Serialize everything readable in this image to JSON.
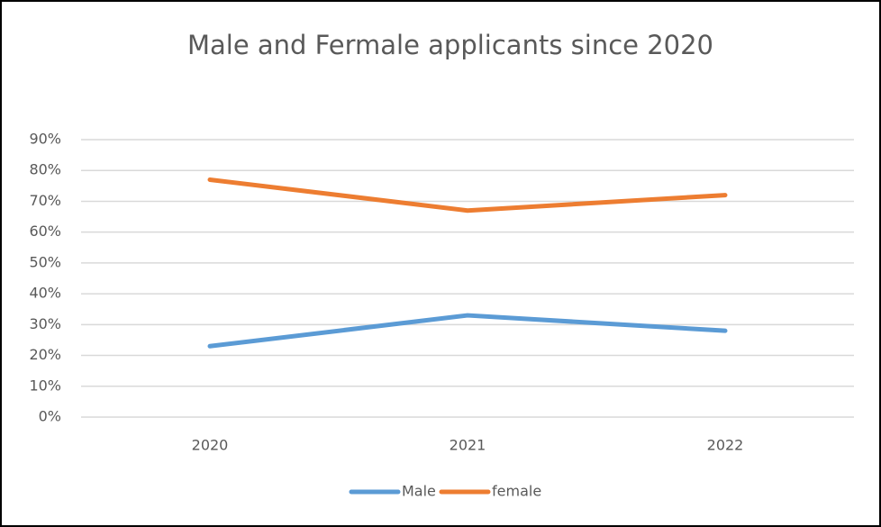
{
  "chart_data": {
    "type": "line",
    "title": "Male and Fermale applicants since 2020",
    "categories": [
      "2020",
      "2021",
      "2022"
    ],
    "series": [
      {
        "name": "Male",
        "color": "#5b9bd5",
        "values": [
          23,
          33,
          28
        ]
      },
      {
        "name": "female",
        "color": "#ed7d31",
        "values": [
          77,
          67,
          72
        ]
      }
    ],
    "ylim": [
      0,
      90
    ],
    "yticks": [
      {
        "value": 0,
        "label": "0%"
      },
      {
        "value": 10,
        "label": "10%"
      },
      {
        "value": 20,
        "label": "20%"
      },
      {
        "value": 30,
        "label": "30%"
      },
      {
        "value": 40,
        "label": "40%"
      },
      {
        "value": 50,
        "label": "50%"
      },
      {
        "value": 60,
        "label": "60%"
      },
      {
        "value": 70,
        "label": "70%"
      },
      {
        "value": 80,
        "label": "80%"
      },
      {
        "value": 90,
        "label": "90%"
      }
    ],
    "grid": true,
    "legend": "bottom"
  }
}
